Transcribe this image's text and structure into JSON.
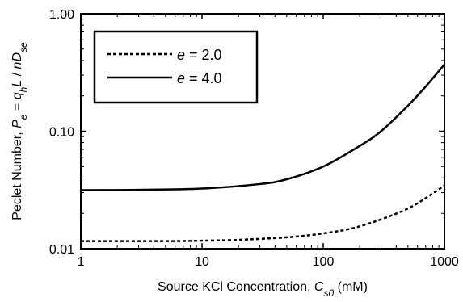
{
  "chart_data": {
    "type": "line",
    "xscale": "log",
    "yscale": "log",
    "xlim": [
      1,
      1000
    ],
    "ylim": [
      0.01,
      1.0
    ],
    "grid": false,
    "legend_placement": "top-left",
    "xlabel": {
      "parts": [
        {
          "text": "Source KCl Concentration, ",
          "style": "normal"
        },
        {
          "text": "C",
          "style": "italic"
        },
        {
          "text": "s0",
          "style": "italic-sub"
        },
        {
          "text": " (mM)",
          "style": "normal"
        }
      ]
    },
    "ylabel": {
      "parts": [
        {
          "text": "Peclet Number, ",
          "style": "normal"
        },
        {
          "text": "P",
          "style": "italic"
        },
        {
          "text": "e",
          "style": "italic-sub"
        },
        {
          "text": " = ",
          "style": "normal"
        },
        {
          "text": "q",
          "style": "italic"
        },
        {
          "text": "h",
          "style": "italic-sub"
        },
        {
          "text": "L",
          "style": "italic"
        },
        {
          "text": " / ",
          "style": "normal"
        },
        {
          "text": "nD",
          "style": "italic"
        },
        {
          "text": "se",
          "style": "italic-sub"
        }
      ]
    },
    "xticks": [
      {
        "value": 1,
        "label": "1"
      },
      {
        "value": 10,
        "label": "10"
      },
      {
        "value": 100,
        "label": "100"
      },
      {
        "value": 1000,
        "label": "1000"
      }
    ],
    "yticks": [
      {
        "value": 0.01,
        "label": "0.01"
      },
      {
        "value": 0.1,
        "label": "0.10"
      },
      {
        "value": 1.0,
        "label": "1.00"
      }
    ],
    "series": [
      {
        "name_var": "e",
        "name_rest": " = 2.0",
        "style": "dashed",
        "color": "#000000",
        "points": [
          [
            1,
            0.0116
          ],
          [
            5,
            0.0116
          ],
          [
            10,
            0.0117
          ],
          [
            20,
            0.0119
          ],
          [
            50,
            0.0125
          ],
          [
            100,
            0.0135
          ],
          [
            200,
            0.0155
          ],
          [
            500,
            0.022
          ],
          [
            1000,
            0.0345
          ]
        ]
      },
      {
        "name_var": "e",
        "name_rest": " = 4.0",
        "style": "solid",
        "color": "#000000",
        "points": [
          [
            1,
            0.0315
          ],
          [
            3,
            0.0317
          ],
          [
            10,
            0.0325
          ],
          [
            30,
            0.0355
          ],
          [
            50,
            0.039
          ],
          [
            100,
            0.05
          ],
          [
            200,
            0.075
          ],
          [
            300,
            0.1
          ],
          [
            500,
            0.165
          ],
          [
            700,
            0.24
          ],
          [
            1000,
            0.37
          ]
        ]
      }
    ]
  }
}
